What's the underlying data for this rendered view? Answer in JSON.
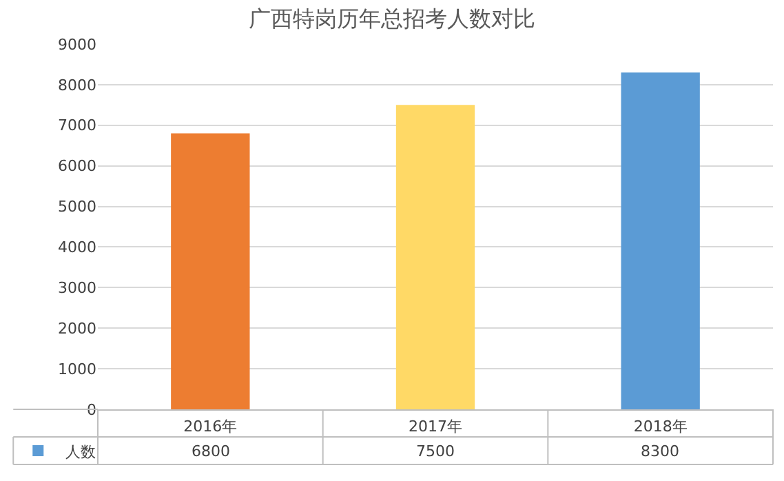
{
  "chart_data": {
    "type": "bar",
    "title": "广西特岗历年总招考人数对比",
    "categories": [
      "2016年",
      "2017年",
      "2018年"
    ],
    "series": [
      {
        "name": "人数",
        "color": "#5b9bd5",
        "colors": [
          "#ed7d31",
          "#ffd966",
          "#5b9bd5"
        ],
        "values": [
          6800,
          7500,
          8300
        ]
      }
    ],
    "ylim": [
      0,
      9000
    ],
    "yticks": [
      0,
      1000,
      2000,
      3000,
      4000,
      5000,
      6000,
      7000,
      8000,
      9000
    ],
    "grid": "y",
    "data_labels": true,
    "legend": "bottom"
  }
}
